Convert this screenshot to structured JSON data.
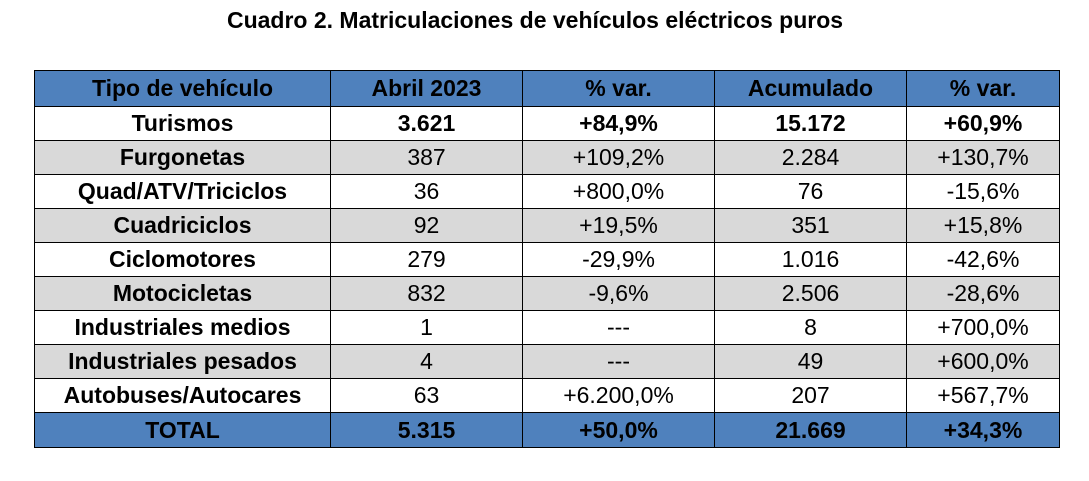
{
  "title": "Cuadro 2. Matriculaciones de vehículos eléctricos puros",
  "table": {
    "headers": [
      "Tipo de vehículo",
      "Abril 2023",
      "% var.",
      "Acumulado",
      "% var."
    ],
    "rows": [
      [
        "Turismos",
        "3.621",
        "+84,9%",
        "15.172",
        "+60,9%"
      ],
      [
        "Furgonetas",
        "387",
        "+109,2%",
        "2.284",
        "+130,7%"
      ],
      [
        "Quad/ATV/Triciclos",
        "36",
        "+800,0%",
        "76",
        "-15,6%"
      ],
      [
        "Cuadriciclos",
        "92",
        "+19,5%",
        "351",
        "+15,8%"
      ],
      [
        "Ciclomotores",
        "279",
        "-29,9%",
        "1.016",
        "-42,6%"
      ],
      [
        "Motocicletas",
        "832",
        "-9,6%",
        "2.506",
        "-28,6%"
      ],
      [
        "Industriales medios",
        "1",
        "---",
        "8",
        "+700,0%"
      ],
      [
        "Industriales pesados",
        "4",
        "---",
        "49",
        "+600,0%"
      ],
      [
        "Autobuses/Autocares",
        "63",
        "+6.200,0%",
        "207",
        "+567,7%"
      ]
    ],
    "total": [
      "TOTAL",
      "5.315",
      "+50,0%",
      "21.669",
      "+34,3%"
    ]
  },
  "colors": {
    "header_bg": "#4f81bd",
    "row_shade": "#d9d9d9"
  }
}
